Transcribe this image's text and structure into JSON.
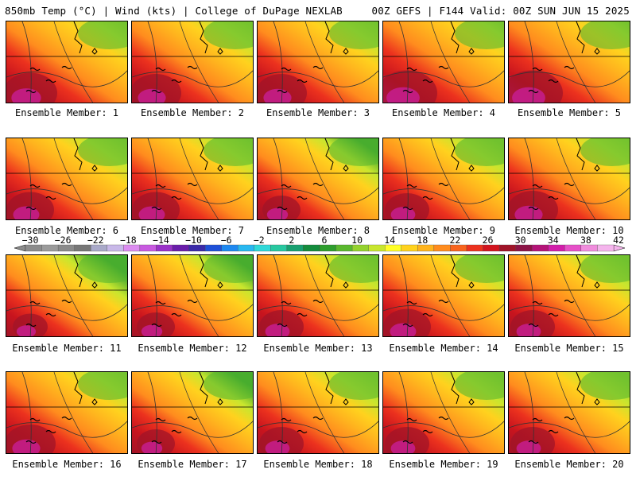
{
  "header": {
    "left": "850mb Temp (°C) | Wind (kts) | College of DuPage NEXLAB",
    "right": "00Z GEFS | F144 Valid: 00Z SUN JUN 15 2025"
  },
  "members": [
    {
      "label": "Ensemble Member: 1",
      "heat": 0.85
    },
    {
      "label": "Ensemble Member: 2",
      "heat": 0.8
    },
    {
      "label": "Ensemble Member: 3",
      "heat": 0.8
    },
    {
      "label": "Ensemble Member: 4",
      "heat": 0.95
    },
    {
      "label": "Ensemble Member: 5",
      "heat": 0.95
    },
    {
      "label": "Ensemble Member: 6",
      "heat": 0.75
    },
    {
      "label": "Ensemble Member: 7",
      "heat": 0.75
    },
    {
      "label": "Ensemble Member: 8",
      "heat": 0.6
    },
    {
      "label": "Ensemble Member: 9",
      "heat": 0.7
    },
    {
      "label": "Ensemble Member: 10",
      "heat": 0.8
    },
    {
      "label": "Ensemble Member: 11",
      "heat": 0.55
    },
    {
      "label": "Ensemble Member: 12",
      "heat": 0.6
    },
    {
      "label": "Ensemble Member: 13",
      "heat": 0.7
    },
    {
      "label": "Ensemble Member: 14",
      "heat": 0.75
    },
    {
      "label": "Ensemble Member: 15",
      "heat": 0.7
    },
    {
      "label": "Ensemble Member: 16",
      "heat": 0.8
    },
    {
      "label": "Ensemble Member: 17",
      "heat": 0.6
    },
    {
      "label": "Ensemble Member: 18",
      "heat": 0.7
    },
    {
      "label": "Ensemble Member: 19",
      "heat": 0.7
    },
    {
      "label": "Ensemble Member: 20",
      "heat": 0.7
    }
  ],
  "colorbar": {
    "labels": [
      "-30",
      "-26",
      "-22",
      "-18",
      "-14",
      "-10",
      "-6",
      "-2",
      "2",
      "6",
      "10",
      "14",
      "18",
      "22",
      "26",
      "30",
      "34",
      "38",
      "42"
    ],
    "colors": [
      "#8c8c8c",
      "#9b9b9b",
      "#8a8a8a",
      "#777777",
      "#a9a9c9",
      "#c8b8e8",
      "#dc8cf0",
      "#c85ae0",
      "#9a32c8",
      "#6a1eaa",
      "#3a2aa8",
      "#1e50d8",
      "#1e88f0",
      "#28b8f0",
      "#30d8d8",
      "#28c8a0",
      "#18a070",
      "#148c3c",
      "#2e9e2e",
      "#5ab82e",
      "#94d22e",
      "#c8e62e",
      "#ffff28",
      "#ffd21e",
      "#ffb41e",
      "#ff8c1e",
      "#f8641e",
      "#ec321e",
      "#d2141e",
      "#a01428",
      "#8c1446",
      "#b41478",
      "#d21eaa",
      "#e650c8",
      "#f08cdc",
      "#f4b4ec"
    ]
  }
}
